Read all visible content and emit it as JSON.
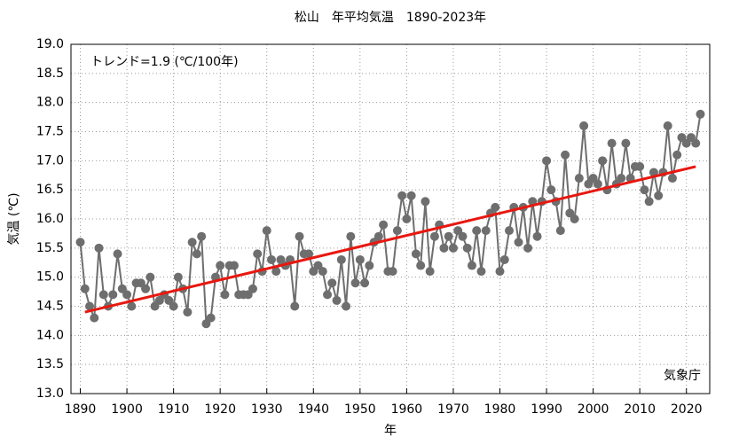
{
  "chart_data": {
    "type": "line",
    "title": "松山　年平均気温　1890-2023年",
    "xlabel": "年",
    "ylabel": "気温 (℃)",
    "annotations": [
      "トレンド=1.9 (℃/100年)",
      "気象庁"
    ],
    "x": [
      1890,
      1891,
      1892,
      1893,
      1894,
      1895,
      1896,
      1897,
      1898,
      1899,
      1900,
      1901,
      1902,
      1903,
      1904,
      1905,
      1906,
      1907,
      1908,
      1909,
      1910,
      1911,
      1912,
      1913,
      1914,
      1915,
      1916,
      1917,
      1918,
      1919,
      1920,
      1921,
      1922,
      1923,
      1924,
      1925,
      1926,
      1927,
      1928,
      1929,
      1930,
      1931,
      1932,
      1933,
      1934,
      1935,
      1936,
      1937,
      1938,
      1939,
      1940,
      1941,
      1942,
      1943,
      1944,
      1945,
      1946,
      1947,
      1948,
      1949,
      1950,
      1951,
      1952,
      1953,
      1954,
      1955,
      1956,
      1957,
      1958,
      1959,
      1960,
      1961,
      1962,
      1963,
      1964,
      1965,
      1966,
      1967,
      1968,
      1969,
      1970,
      1971,
      1972,
      1973,
      1974,
      1975,
      1976,
      1977,
      1978,
      1979,
      1980,
      1981,
      1982,
      1983,
      1984,
      1985,
      1986,
      1987,
      1988,
      1989,
      1990,
      1991,
      1992,
      1993,
      1994,
      1995,
      1996,
      1997,
      1998,
      1999,
      2000,
      2001,
      2002,
      2003,
      2004,
      2005,
      2006,
      2007,
      2008,
      2009,
      2010,
      2011,
      2012,
      2013,
      2014,
      2015,
      2016,
      2017,
      2018,
      2019,
      2020,
      2021,
      2022,
      2023
    ],
    "series": [
      {
        "name": "年平均気温",
        "color": "#6e6e6e",
        "markers": true,
        "values": [
          15.6,
          14.8,
          14.5,
          14.3,
          15.5,
          14.7,
          14.5,
          14.7,
          15.4,
          14.8,
          14.7,
          14.5,
          14.9,
          14.9,
          14.8,
          15.0,
          14.5,
          14.6,
          14.7,
          14.6,
          14.5,
          15.0,
          14.8,
          14.4,
          15.6,
          15.4,
          15.7,
          14.2,
          14.3,
          15.0,
          15.2,
          14.7,
          15.2,
          15.2,
          14.7,
          14.7,
          14.7,
          14.8,
          15.4,
          15.1,
          15.8,
          15.3,
          15.1,
          15.3,
          15.2,
          15.3,
          14.5,
          15.7,
          15.4,
          15.4,
          15.1,
          15.2,
          15.1,
          14.7,
          14.9,
          14.6,
          15.3,
          14.5,
          15.7,
          14.9,
          15.3,
          14.9,
          15.2,
          15.6,
          15.7,
          15.9,
          15.1,
          15.1,
          15.8,
          16.4,
          16.0,
          16.4,
          15.4,
          15.2,
          16.3,
          15.1,
          15.7,
          15.9,
          15.5,
          15.7,
          15.5,
          15.8,
          15.7,
          15.5,
          15.2,
          15.8,
          15.1,
          15.8,
          16.1,
          16.2,
          15.1,
          15.3,
          15.8,
          16.2,
          15.6,
          16.2,
          15.5,
          16.3,
          15.7,
          16.3,
          17.0,
          16.5,
          16.3,
          15.8,
          17.1,
          16.1,
          16.0,
          16.7,
          17.6,
          16.6,
          16.7,
          16.6,
          17.0,
          16.5,
          17.3,
          16.6,
          16.7,
          17.3,
          16.7,
          16.9,
          16.9,
          16.5,
          16.3,
          16.8,
          16.4,
          16.8,
          17.6,
          16.7,
          17.1,
          17.4,
          17.3,
          17.4,
          17.3,
          17.8
        ]
      },
      {
        "name": "トレンド",
        "color": "#e8170f",
        "markers": false,
        "x": [
          1891,
          2022
        ],
        "values": [
          14.4,
          16.9
        ]
      }
    ],
    "xlim": [
      1888,
      2025
    ],
    "ylim": [
      13,
      19
    ],
    "xticks": [
      1890,
      1900,
      1910,
      1920,
      1930,
      1940,
      1950,
      1960,
      1970,
      1980,
      1990,
      2000,
      2010,
      2020
    ],
    "yticks": [
      {
        "value": 13,
        "label": "13.0"
      },
      13.5,
      {
        "value": 14,
        "label": "14.0"
      },
      14.5,
      {
        "value": 15,
        "label": "15.0"
      },
      15.5,
      {
        "value": 16,
        "label": "16.0"
      },
      16.5,
      {
        "value": 17,
        "label": "17.0"
      },
      17.5,
      {
        "value": 18,
        "label": "18.0"
      },
      18.5,
      {
        "value": 19,
        "label": "19.0"
      }
    ],
    "grid": true
  }
}
